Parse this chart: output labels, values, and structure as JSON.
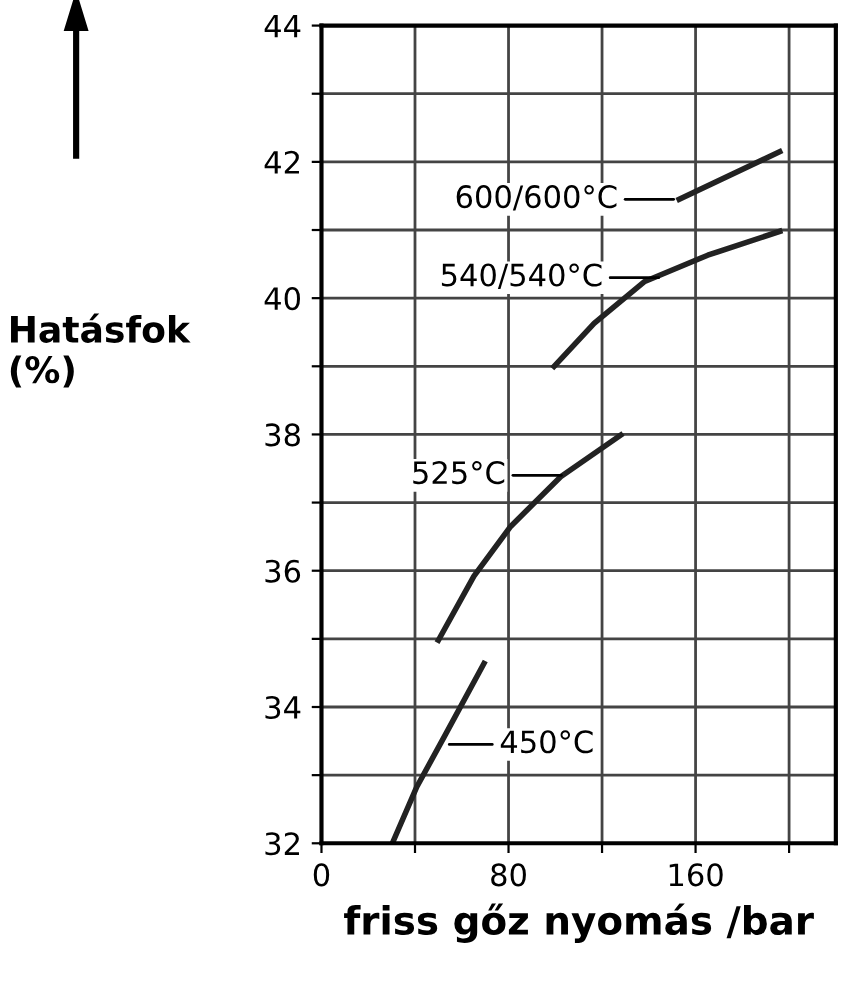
{
  "chart_data": {
    "type": "line",
    "xlabel": "friss gőz nyomás /bar",
    "ylabel": "Hatásfok\n(%)",
    "xlim": [
      0,
      220
    ],
    "xticks": [
      0,
      {
        "value": 40,
        "label": null
      },
      80,
      {
        "value": 120,
        "label": null
      },
      160,
      {
        "value": 200,
        "label": null
      }
    ],
    "ylim": [
      32,
      44
    ],
    "yticks": [
      32,
      {
        "value": 33,
        "label": null
      },
      34,
      {
        "value": 35,
        "label": null
      },
      36,
      {
        "value": 37,
        "label": null
      },
      38,
      {
        "value": 39,
        "label": null
      },
      40,
      {
        "value": 41,
        "label": null
      },
      42,
      {
        "value": 43,
        "label": null
      },
      44
    ],
    "grid": true,
    "legend": false,
    "marker": "none",
    "line_style": "solid",
    "series": [
      {
        "color": "#222222",
        "x": [
          30.3,
          40.8,
          52.3,
          69.5
        ],
        "values": [
          32,
          32.83,
          33.55,
          34.64
        ]
      },
      {
        "color": "#222222",
        "x": [
          50,
          65.2,
          80.9,
          102.3,
          128
        ],
        "values": [
          34.98,
          35.92,
          36.65,
          37.38,
          37.99
        ]
      },
      {
        "color": "#222222",
        "x": [
          99.5,
          116.6,
          138,
          165.2,
          196
        ],
        "values": [
          39.0,
          39.63,
          40.24,
          40.63,
          40.98
        ]
      },
      {
        "color": "#222222",
        "x": [
          153,
          196
        ],
        "values": [
          41.45,
          42.15
        ]
      }
    ],
    "annotations": [
      {
        "text": "600/600°C",
        "x": 153,
        "y": 41.45
      },
      {
        "text": "540/540°C",
        "x": 146.6,
        "y": 40.3
      },
      {
        "text": "525°C",
        "x": 105,
        "y": 37.4
      },
      {
        "text": "450°C",
        "x": 52.3,
        "y": 33.45
      }
    ]
  }
}
